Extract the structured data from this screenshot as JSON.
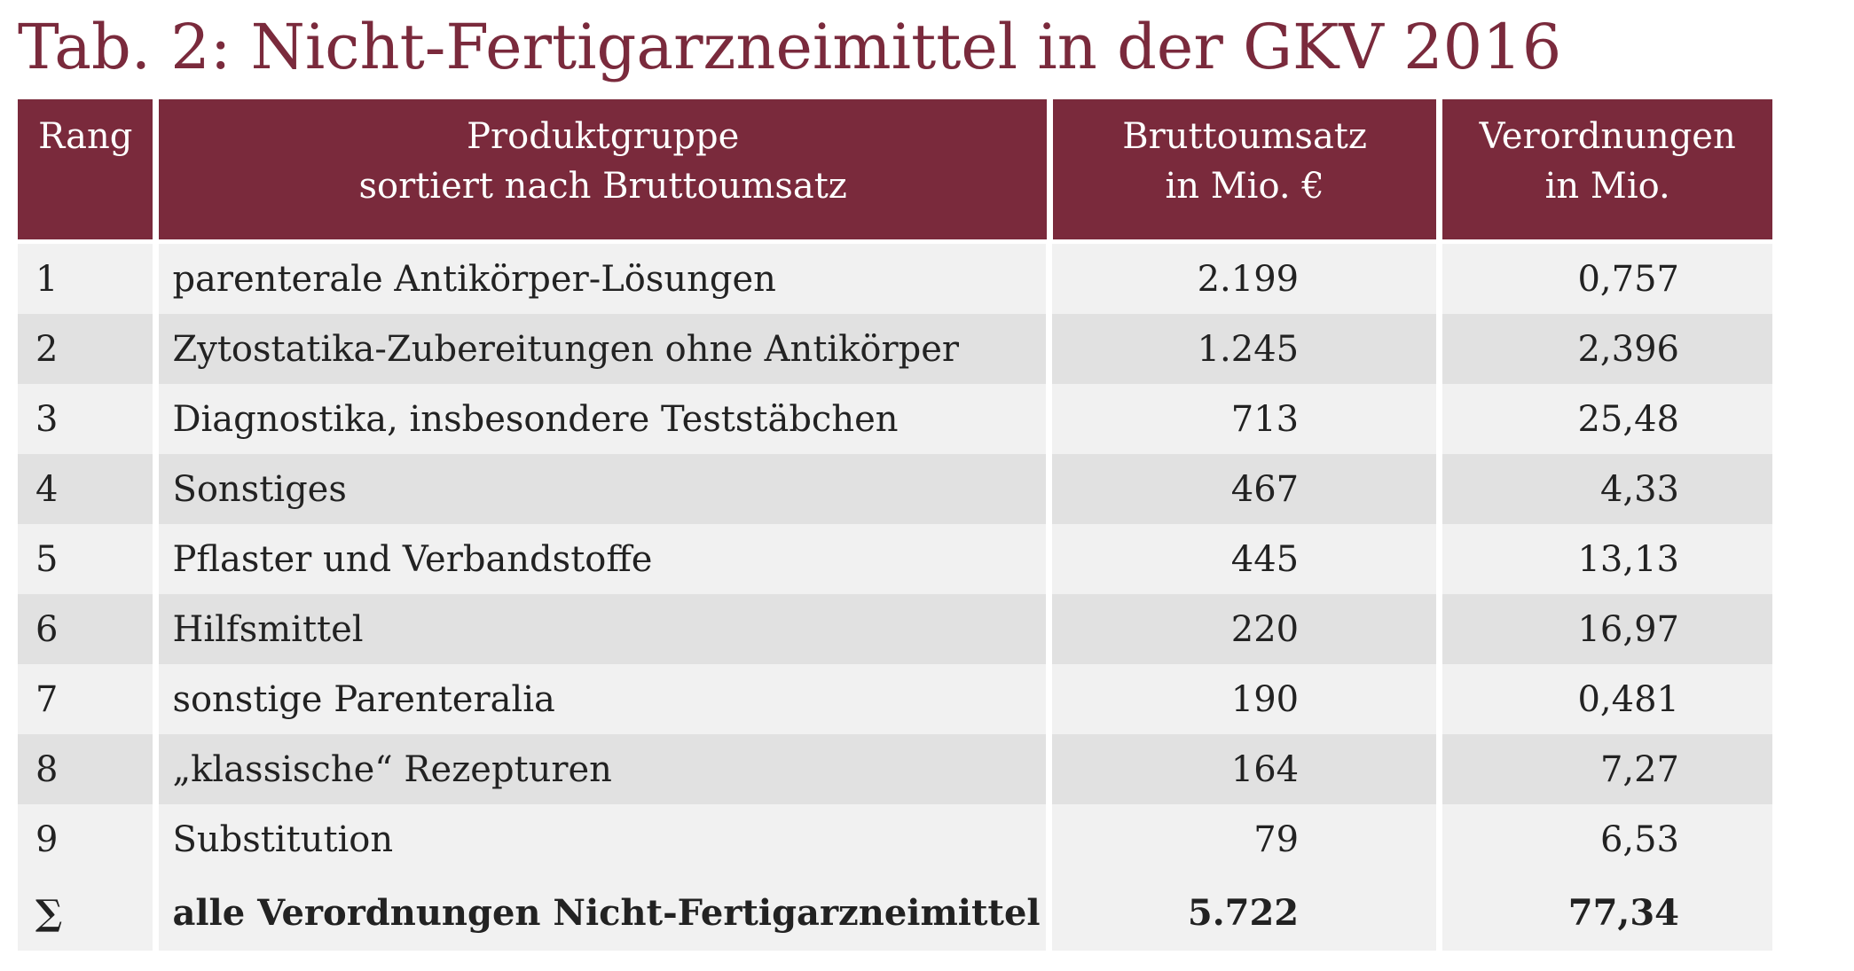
{
  "title": "Tab. 2: Nicht-Fertigarzneimittel in der GKV 2016",
  "header": {
    "rang": "Rang",
    "produkt_line1": "Produktgruppe",
    "produkt_line2": "sortiert nach Bruttoumsatz",
    "umsatz_line1": "Bruttoumsatz",
    "umsatz_line2": "in Mio. €",
    "verord_line1": "Verordnungen",
    "verord_line2": "in Mio."
  },
  "rows": [
    {
      "rang": "1",
      "produkt": "parenterale Antikörper-Lösungen",
      "umsatz": "2.199",
      "verordnungen": "0,757"
    },
    {
      "rang": "2",
      "produkt": "Zytostatika-Zubereitungen ohne Antikörper",
      "umsatz": "1.245",
      "verordnungen": "2,396"
    },
    {
      "rang": "3",
      "produkt": "Diagnostika, insbesondere Teststäbchen",
      "umsatz": "713",
      "verordnungen": "25,48"
    },
    {
      "rang": "4",
      "produkt": "Sonstiges",
      "umsatz": "467",
      "verordnungen": "4,33"
    },
    {
      "rang": "5",
      "produkt": "Pflaster und Verbandstoffe",
      "umsatz": "445",
      "verordnungen": "13,13"
    },
    {
      "rang": "6",
      "produkt": "Hilfsmittel",
      "umsatz": "220",
      "verordnungen": "16,97"
    },
    {
      "rang": "7",
      "produkt": "sonstige Parenteralia",
      "umsatz": "190",
      "verordnungen": "0,481"
    },
    {
      "rang": "8",
      "produkt": "„klassische“ Rezepturen",
      "umsatz": "164",
      "verordnungen": "7,27"
    },
    {
      "rang": "9",
      "produkt": "Substitution",
      "umsatz": "79",
      "verordnungen": "6,53"
    }
  ],
  "total": {
    "rang": "∑",
    "produkt": "alle Verordnungen Nicht-Fertigarzneimittel",
    "umsatz": "5.722",
    "verordnungen": "77,34"
  },
  "colors": {
    "header_bg": "#7a2a3c",
    "title": "#7a2a3c",
    "row_light": "#f1f1f1",
    "row_dark": "#e1e1e1"
  }
}
